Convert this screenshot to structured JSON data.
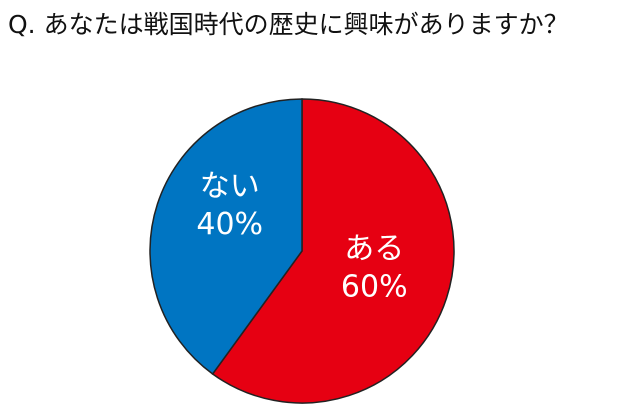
{
  "chart_data": {
    "type": "pie",
    "title": "Q. あなたは戦国時代の歴史に興味がありますか？",
    "categories": [
      "ある",
      "ない"
    ],
    "values": [
      60,
      40
    ],
    "value_labels": [
      "60%",
      "40%"
    ],
    "colors": [
      "#e60012",
      "#0075c2"
    ]
  }
}
